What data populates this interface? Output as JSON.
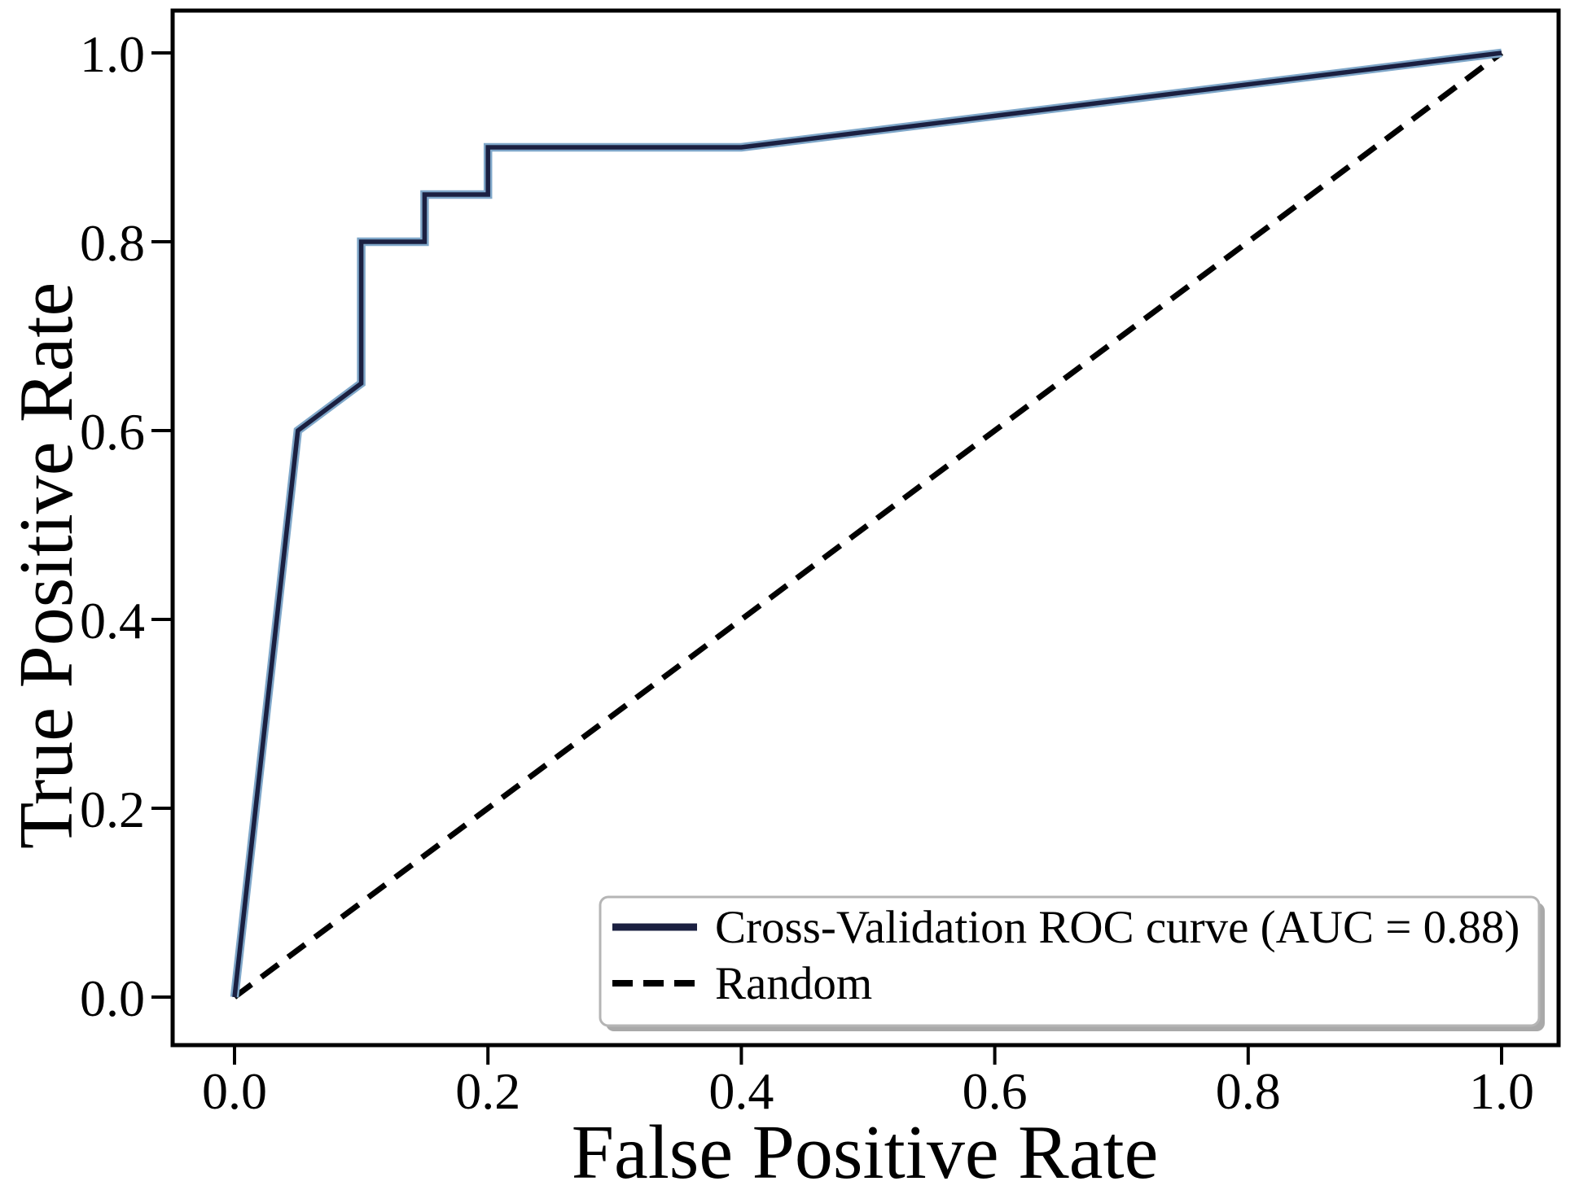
{
  "figure": {
    "x_axis_title": "False Positive Rate",
    "y_axis_title": "True Positive Rate"
  },
  "legend": {
    "position": "lower right",
    "items": [
      {
        "label": "Cross-Validation ROC curve (AUC = 0.88)",
        "line_style": "solid",
        "color": "#1b2041"
      },
      {
        "label": "Random",
        "line_style": "dashed",
        "color": "#000000"
      }
    ]
  },
  "colors": {
    "roc_curve": "#1b2041",
    "roc_curve_underlay": "#7fa7c9",
    "random_line": "#000000",
    "legend_border": "#b5b5b5",
    "legend_shadow": "#a9a9a9",
    "background": "#ffffff"
  },
  "chart_data": {
    "type": "line",
    "title": "",
    "xlabel": "False Positive Rate",
    "ylabel": "True Positive Rate",
    "xlim": [
      -0.05,
      1.05
    ],
    "ylim": [
      -0.05,
      1.05
    ],
    "grid": false,
    "legend_position": "lower right",
    "x_ticks": {
      "values": [
        0.0,
        0.2,
        0.4,
        0.6,
        0.8,
        1.0
      ],
      "labels": [
        "0.0",
        "0.2",
        "0.4",
        "0.6",
        "0.8",
        "1.0"
      ]
    },
    "y_ticks": {
      "values": [
        0.0,
        0.2,
        0.4,
        0.6,
        0.8,
        1.0
      ],
      "labels": [
        "0.0",
        "0.2",
        "0.4",
        "0.6",
        "0.8",
        "1.0"
      ]
    },
    "series": [
      {
        "name": "Cross-Validation ROC curve (AUC = 0.88)",
        "style": "solid",
        "color": "#1b2041",
        "underlay_color": "#7fa7c9",
        "auc": 0.88,
        "points": [
          [
            0.0,
            0.0
          ],
          [
            0.05,
            0.6
          ],
          [
            0.1,
            0.65
          ],
          [
            0.1,
            0.8
          ],
          [
            0.15,
            0.8
          ],
          [
            0.15,
            0.85
          ],
          [
            0.2,
            0.85
          ],
          [
            0.2,
            0.9
          ],
          [
            0.4,
            0.9
          ],
          [
            1.0,
            1.0
          ]
        ]
      },
      {
        "name": "Random",
        "style": "dashed",
        "color": "#000000",
        "points": [
          [
            0.0,
            0.0
          ],
          [
            1.0,
            1.0
          ]
        ]
      }
    ]
  }
}
